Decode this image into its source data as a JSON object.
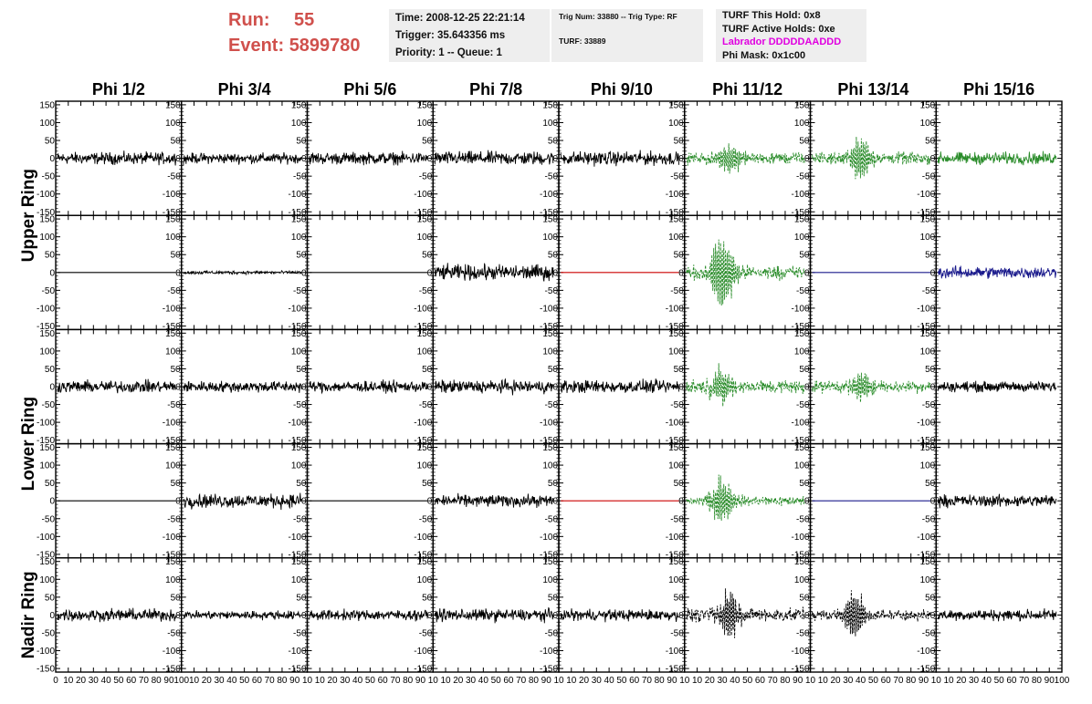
{
  "run_info": {
    "run_label": "Run:",
    "run_value": "55",
    "event_label": "Event:",
    "event_value": "5899780"
  },
  "time_box": {
    "time": "Time: 2008-12-25 22:21:14",
    "trigger": "Trigger: 35.643356 ms",
    "priority": "Priority: 1 -- Queue: 1"
  },
  "trig_box": {
    "trig": "Trig Num: 33880 -- Trig Type: RF",
    "turf": "TURF: 33889"
  },
  "turf_box": {
    "this_hold": "TURF This Hold: 0x8",
    "active_holds": "TURF Active Holds: 0xe",
    "labrador": "Labrador DDDDDAADDD",
    "phi_mask": "Phi Mask: 0x1c00"
  },
  "colors": {
    "run_text": "#d0504c",
    "labrador": "#e000e0",
    "trace_black": "#000000",
    "trace_green": "#2a8c2a",
    "trace_blue": "#1a1a8c",
    "trace_red": "#cc0000",
    "info_bg": "#eeeeee"
  },
  "chart_data": {
    "type": "line",
    "columns": [
      "Phi 1/2",
      "Phi 3/4",
      "Phi 5/6",
      "Phi 7/8",
      "Phi 9/10",
      "Phi 11/12",
      "Phi 13/14",
      "Phi 15/16"
    ],
    "rows": [
      "Upper Ring",
      "Upper Ring",
      "Lower Ring",
      "Lower Ring",
      "Nadir Ring"
    ],
    "row_labels": [
      "Upper Ring",
      "Lower Ring",
      "Nadir Ring"
    ],
    "ylim": [
      -160,
      160
    ],
    "y_ticks": [
      -150,
      -100,
      -50,
      0,
      50,
      100,
      150
    ],
    "xlim": [
      0,
      100
    ],
    "x_tick_labels_first": [
      "0",
      "10",
      "20",
      "30",
      "40",
      "50",
      "60",
      "70",
      "80",
      "90",
      "100"
    ],
    "x_tick_labels_other": [
      "10",
      "20",
      "30",
      "40",
      "50",
      "60",
      "70",
      "80",
      "90",
      "10"
    ],
    "x_tick_labels_last": [
      "10",
      "20",
      "30",
      "40",
      "50",
      "60",
      "70",
      "80",
      "90",
      "100"
    ],
    "waveforms": [
      [
        {
          "kind": "noise",
          "amp": 14,
          "color": "black"
        },
        {
          "kind": "noise",
          "amp": 12,
          "color": "black"
        },
        {
          "kind": "noise",
          "amp": 14,
          "color": "black"
        },
        {
          "kind": "noise",
          "amp": 16,
          "color": "black"
        },
        {
          "kind": "noise",
          "amp": 16,
          "color": "black"
        },
        {
          "kind": "burst",
          "amp": 14,
          "peak": 55,
          "center": 35,
          "color": "green",
          "dashed": true
        },
        {
          "kind": "burst",
          "amp": 14,
          "peak": 60,
          "center": 40,
          "color": "green",
          "dashed": true
        },
        {
          "kind": "noise",
          "amp": 14,
          "color": "green"
        }
      ],
      [
        {
          "kind": "flat",
          "color": "black"
        },
        {
          "kind": "noise",
          "amp": 4,
          "color": "black"
        },
        {
          "kind": "flat",
          "color": "black"
        },
        {
          "kind": "noise",
          "amp": 18,
          "color": "black"
        },
        {
          "kind": "flat",
          "color": "red"
        },
        {
          "kind": "burst",
          "amp": 16,
          "peak": 120,
          "center": 30,
          "color": "green",
          "dashed": true
        },
        {
          "kind": "flat",
          "color": "blue"
        },
        {
          "kind": "noise",
          "amp": 14,
          "color": "blue"
        }
      ],
      [
        {
          "kind": "noise",
          "amp": 14,
          "color": "black"
        },
        {
          "kind": "noise",
          "amp": 13,
          "color": "black"
        },
        {
          "kind": "noise",
          "amp": 13,
          "color": "black"
        },
        {
          "kind": "noise",
          "amp": 15,
          "color": "black"
        },
        {
          "kind": "noise",
          "amp": 15,
          "color": "black"
        },
        {
          "kind": "burst",
          "amp": 16,
          "peak": 55,
          "center": 30,
          "color": "green",
          "dashed": true
        },
        {
          "kind": "burst",
          "amp": 14,
          "peak": 45,
          "center": 40,
          "color": "green",
          "dashed": true
        },
        {
          "kind": "noise",
          "amp": 12,
          "color": "black"
        }
      ],
      [
        {
          "kind": "flat",
          "color": "black"
        },
        {
          "kind": "noise",
          "amp": 16,
          "color": "black"
        },
        {
          "kind": "flat",
          "color": "black"
        },
        {
          "kind": "noise",
          "amp": 14,
          "color": "black"
        },
        {
          "kind": "flat",
          "color": "red"
        },
        {
          "kind": "burst",
          "amp": 12,
          "peak": 80,
          "center": 30,
          "color": "green",
          "dashed": true
        },
        {
          "kind": "flat",
          "color": "blue"
        },
        {
          "kind": "noise",
          "amp": 14,
          "color": "black"
        }
      ],
      [
        {
          "kind": "noise",
          "amp": 14,
          "color": "black"
        },
        {
          "kind": "noise",
          "amp": 10,
          "color": "black"
        },
        {
          "kind": "noise",
          "amp": 12,
          "color": "black"
        },
        {
          "kind": "noise",
          "amp": 14,
          "color": "black"
        },
        {
          "kind": "noise",
          "amp": 13,
          "color": "black"
        },
        {
          "kind": "burst",
          "amp": 16,
          "peak": 75,
          "center": 35,
          "color": "black",
          "dashed": true
        },
        {
          "kind": "burst",
          "amp": 12,
          "peak": 75,
          "center": 35,
          "color": "black",
          "dashed": true
        },
        {
          "kind": "noise",
          "amp": 13,
          "color": "black"
        }
      ]
    ]
  }
}
